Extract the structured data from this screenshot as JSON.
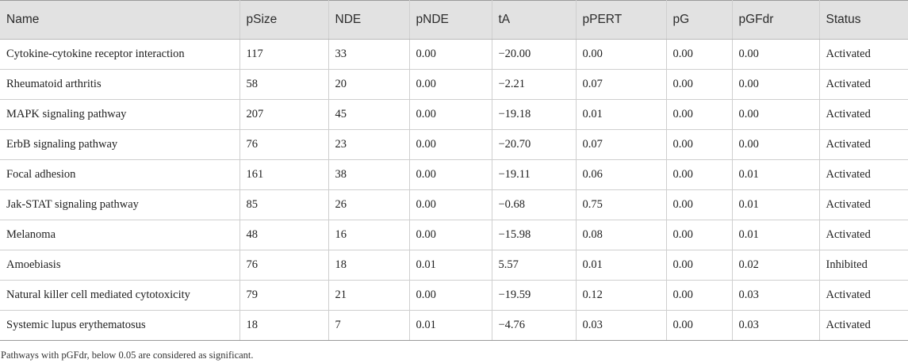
{
  "table": {
    "headers": [
      "Name",
      "pSize",
      "NDE",
      "pNDE",
      "tA",
      "pPERT",
      "pG",
      "pGFdr",
      "Status"
    ],
    "rows": [
      [
        "Cytokine-cytokine receptor interaction",
        "117",
        "33",
        "0.00",
        "−20.00",
        "0.00",
        "0.00",
        "0.00",
        "Activated"
      ],
      [
        "Rheumatoid arthritis",
        "58",
        "20",
        "0.00",
        "−2.21",
        "0.07",
        "0.00",
        "0.00",
        "Activated"
      ],
      [
        "MAPK signaling pathway",
        "207",
        "45",
        "0.00",
        "−19.18",
        "0.01",
        "0.00",
        "0.00",
        "Activated"
      ],
      [
        "ErbB signaling pathway",
        "76",
        "23",
        "0.00",
        "−20.70",
        "0.07",
        "0.00",
        "0.00",
        "Activated"
      ],
      [
        "Focal adhesion",
        "161",
        "38",
        "0.00",
        "−19.11",
        "0.06",
        "0.00",
        "0.01",
        "Activated"
      ],
      [
        "Jak-STAT signaling pathway",
        "85",
        "26",
        "0.00",
        "−0.68",
        "0.75",
        "0.00",
        "0.01",
        "Activated"
      ],
      [
        "Melanoma",
        "48",
        "16",
        "0.00",
        "−15.98",
        "0.08",
        "0.00",
        "0.01",
        "Activated"
      ],
      [
        "Amoebiasis",
        "76",
        "18",
        "0.01",
        "5.57",
        "0.01",
        "0.00",
        "0.02",
        "Inhibited"
      ],
      [
        "Natural killer cell mediated cytotoxicity",
        "79",
        "21",
        "0.00",
        "−19.59",
        "0.12",
        "0.00",
        "0.03",
        "Activated"
      ],
      [
        "Systemic lupus erythematosus",
        "18",
        "7",
        "0.01",
        "−4.76",
        "0.03",
        "0.00",
        "0.03",
        "Activated"
      ]
    ]
  },
  "footnote": "Pathways with pGFdr, below 0.05 are considered as significant."
}
